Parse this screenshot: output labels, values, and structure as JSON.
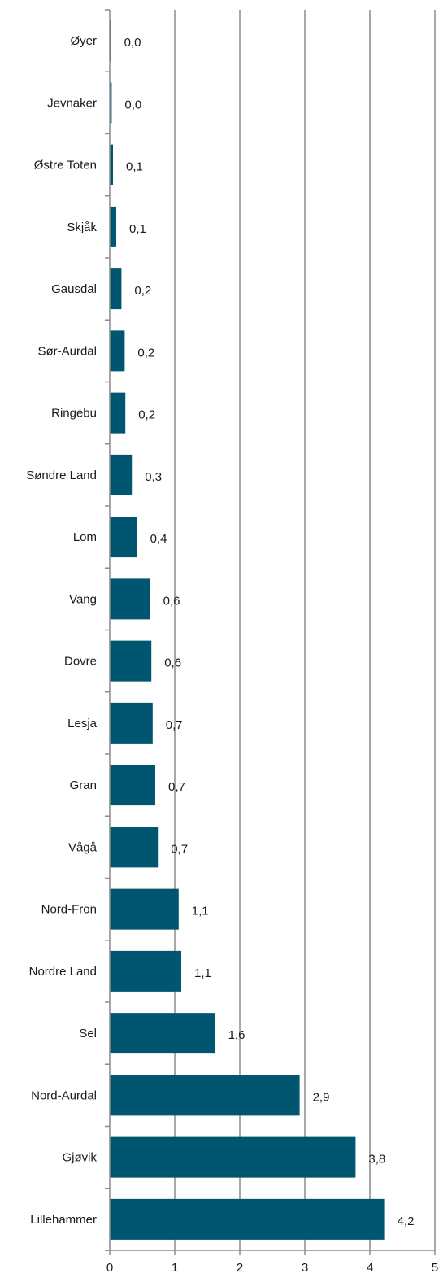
{
  "chart_data": {
    "type": "bar",
    "orientation": "horizontal",
    "categories": [
      "Øyer",
      "Jevnaker",
      "Østre Toten",
      "Skjåk",
      "Gausdal",
      "Sør-Aurdal",
      "Ringebu",
      "Søndre Land",
      "Lom",
      "Vang",
      "Dovre",
      "Lesja",
      "Gran",
      "Vågå",
      "Nord-Fron",
      "Nordre Land",
      "Sel",
      "Nord-Aurdal",
      "Gjøvik",
      "Lillehammer"
    ],
    "values": [
      0.02,
      0.03,
      0.05,
      0.1,
      0.18,
      0.23,
      0.24,
      0.34,
      0.42,
      0.62,
      0.64,
      0.66,
      0.7,
      0.74,
      1.06,
      1.1,
      1.62,
      2.92,
      3.78,
      4.22
    ],
    "data_labels": [
      "0,0",
      "0,0",
      "0,1",
      "0,1",
      "0,2",
      "0,2",
      "0,2",
      "0,3",
      "0,4",
      "0,6",
      "0,6",
      "0,7",
      "0,7",
      "0,7",
      "1,1",
      "1,1",
      "1,6",
      "2,9",
      "3,8",
      "4,2"
    ],
    "x_ticks": [
      "0",
      "1",
      "2",
      "3",
      "4",
      "5"
    ],
    "xlim": [
      0,
      5
    ],
    "title": "",
    "xlabel": "",
    "ylabel": "",
    "grid": "vertical",
    "legend": "none",
    "colors": {
      "bar": "#005570",
      "grid": "#8c8c8c",
      "axis": "#8c8c8c",
      "text": "#1a1a1a"
    }
  }
}
